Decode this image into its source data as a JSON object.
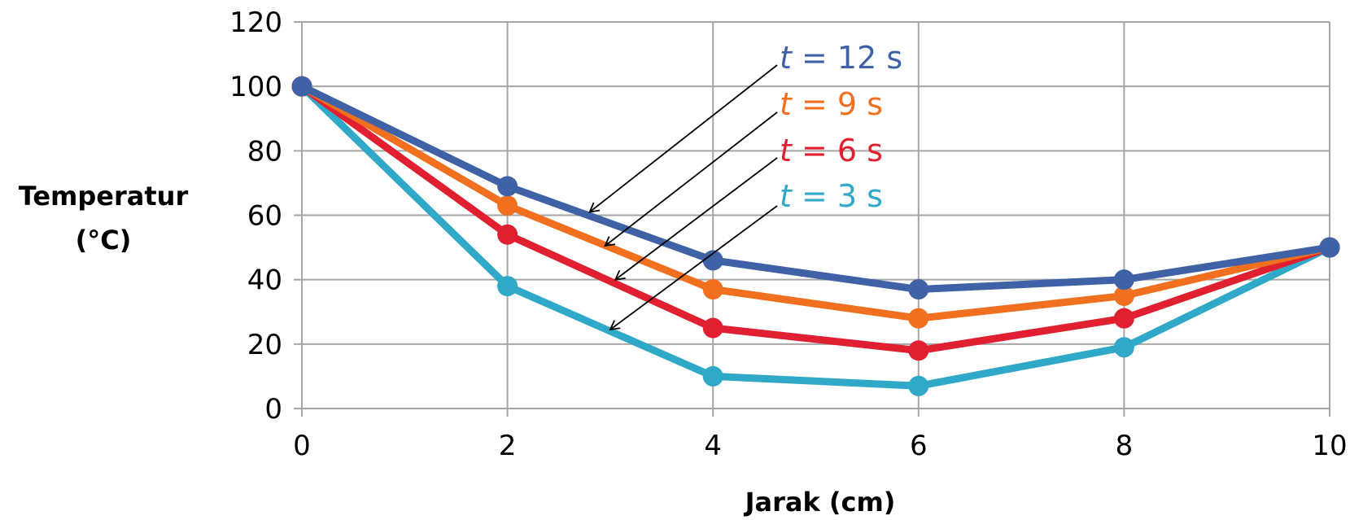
{
  "chart_data": {
    "type": "line",
    "title": "",
    "xlabel": "Jarak (cm)",
    "ylabel_lines": [
      "Temperatur",
      "(°C)"
    ],
    "x": [
      0,
      2,
      4,
      6,
      8,
      10
    ],
    "xticks": [
      "0",
      "2",
      "4",
      "6",
      "8",
      "10"
    ],
    "yticks": [
      "0",
      "20",
      "40",
      "60",
      "80",
      "100",
      "120"
    ],
    "xlim": [
      0,
      10
    ],
    "ylim": [
      0,
      120
    ],
    "grid": true,
    "series": [
      {
        "name": "t = 12 s",
        "label_var": "t",
        "label_rest": " = 12 s",
        "color": "#3f62a6",
        "values": [
          100,
          69,
          46,
          37,
          40,
          50
        ]
      },
      {
        "name": "t = 9 s",
        "label_var": "t",
        "label_rest": " = 9 s",
        "color": "#f07020",
        "values": [
          100,
          63,
          37,
          28,
          35,
          50
        ]
      },
      {
        "name": "t = 6 s",
        "label_var": "t",
        "label_rest": " = 6 s",
        "color": "#e02030",
        "values": [
          100,
          54,
          25,
          18,
          28,
          50
        ]
      },
      {
        "name": "t = 3 s",
        "label_var": "t",
        "label_rest": " = 3 s",
        "color": "#30a8c8",
        "values": [
          100,
          38,
          10,
          7,
          19,
          50
        ]
      }
    ],
    "annotations": [
      {
        "series": "t = 12 s",
        "points_to": [
          2.8,
          61
        ]
      },
      {
        "series": "t = 9 s",
        "points_to": [
          2.95,
          50.5
        ]
      },
      {
        "series": "t = 6 s",
        "points_to": [
          3.05,
          40
        ]
      },
      {
        "series": "t = 3 s",
        "points_to": [
          3.0,
          24.5
        ]
      }
    ]
  }
}
